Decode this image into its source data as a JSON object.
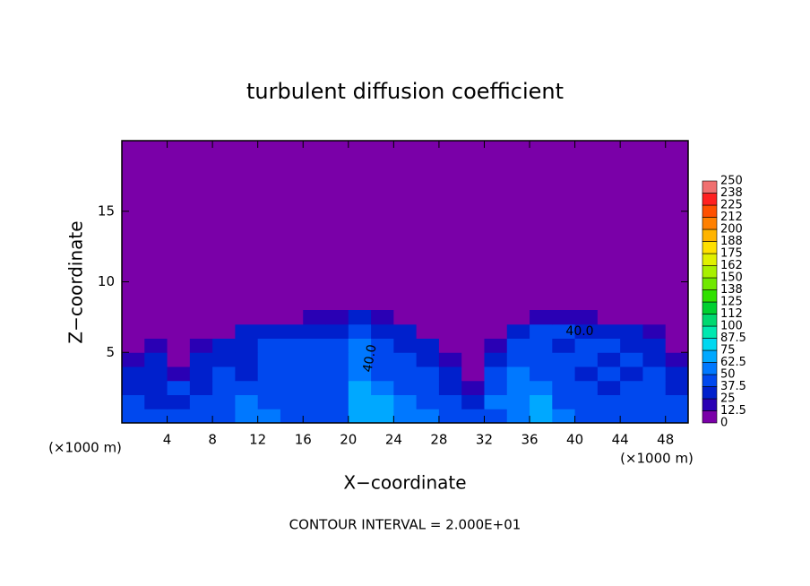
{
  "chart_data": {
    "type": "contourf",
    "title": "turbulent diffusion coefficient",
    "xlabel": "X−coordinate",
    "ylabel": "Z−coordinate",
    "xunit": "(×1000 m)",
    "yunit": "(×1000 m)",
    "footer": "CONTOUR INTERVAL = 2.000E+01",
    "xlim": [
      0,
      50
    ],
    "ylim": [
      0,
      20
    ],
    "xticks": [
      4,
      8,
      12,
      16,
      20,
      24,
      28,
      32,
      36,
      40,
      44,
      48
    ],
    "yticks": [
      5,
      10,
      15
    ],
    "x_edges": [
      0,
      2,
      4,
      6,
      8,
      10,
      12,
      14,
      16,
      18,
      20,
      22,
      24,
      26,
      28,
      30,
      32,
      34,
      36,
      38,
      40,
      42,
      44,
      46,
      48,
      50
    ],
    "z_edges": [
      0,
      1,
      2,
      3,
      4,
      5,
      6,
      7,
      8
    ],
    "values": [
      [
        45,
        45,
        40,
        45,
        45,
        55,
        50,
        45,
        45,
        45,
        70,
        70,
        60,
        55,
        45,
        40,
        45,
        50,
        70,
        55,
        45,
        45,
        45,
        45,
        45
      ],
      [
        40,
        35,
        35,
        40,
        45,
        50,
        45,
        40,
        40,
        40,
        70,
        65,
        50,
        45,
        40,
        30,
        50,
        60,
        70,
        45,
        40,
        40,
        45,
        40,
        40
      ],
      [
        30,
        35,
        40,
        30,
        45,
        40,
        45,
        40,
        40,
        40,
        65,
        50,
        45,
        40,
        35,
        20,
        45,
        55,
        55,
        45,
        40,
        35,
        40,
        40,
        35
      ],
      [
        35,
        30,
        20,
        35,
        40,
        35,
        40,
        45,
        40,
        45,
        60,
        45,
        40,
        40,
        30,
        0,
        40,
        50,
        45,
        40,
        35,
        40,
        35,
        40,
        30
      ],
      [
        20,
        30,
        10,
        30,
        35,
        30,
        45,
        40,
        45,
        40,
        55,
        40,
        40,
        35,
        20,
        0,
        30,
        45,
        40,
        40,
        40,
        35,
        40,
        35,
        20
      ],
      [
        0,
        20,
        0,
        20,
        30,
        35,
        40,
        45,
        40,
        40,
        50,
        40,
        35,
        30,
        0,
        0,
        20,
        40,
        40,
        35,
        40,
        40,
        35,
        30,
        0
      ],
      [
        0,
        0,
        0,
        0,
        0,
        30,
        30,
        30,
        35,
        30,
        45,
        35,
        30,
        0,
        0,
        0,
        0,
        30,
        40,
        40,
        35,
        35,
        30,
        20,
        0
      ],
      [
        0,
        0,
        0,
        0,
        0,
        0,
        0,
        0,
        20,
        20,
        30,
        20,
        0,
        0,
        0,
        0,
        0,
        0,
        20,
        20,
        20,
        0,
        0,
        0,
        0
      ]
    ],
    "levels": [
      0,
      12.5,
      25,
      37.5,
      50,
      62.5,
      75,
      87.5,
      100,
      112,
      125,
      138,
      150,
      162,
      175,
      188,
      200,
      212,
      225,
      238,
      250
    ],
    "colors": [
      "#7a00a8",
      "#2a00b4",
      "#0020cc",
      "#0048ee",
      "#0078ff",
      "#00a8ff",
      "#00d8f0",
      "#00e8b0",
      "#00d870",
      "#00d030",
      "#30e000",
      "#70e800",
      "#a8f000",
      "#e0f000",
      "#ffe000",
      "#ffb400",
      "#ff8000",
      "#ff5000",
      "#ff2020",
      "#f07070"
    ],
    "contour_labels": [
      "40.0",
      "40.0"
    ]
  }
}
